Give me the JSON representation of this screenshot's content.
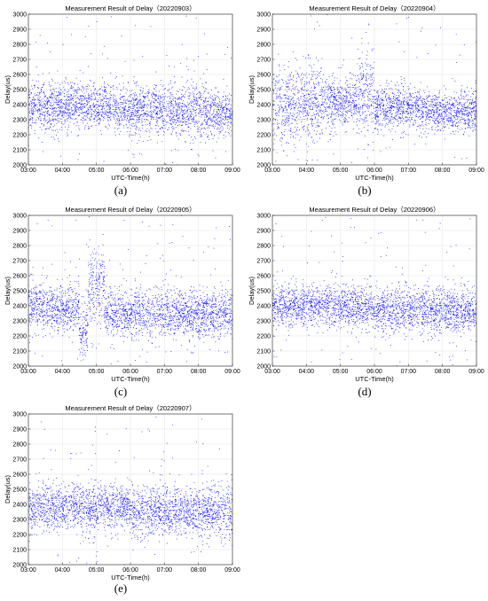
{
  "chart_data": [
    {
      "type": "scatter",
      "panel": "a",
      "caption": "(a)",
      "title": "Measurement Result of Delay（20220903）",
      "xlabel": "UTC-Time(h)",
      "ylabel": "Delay(us)",
      "xlim": [
        "03:00",
        "09:00"
      ],
      "ylim": [
        2000,
        3000
      ],
      "xticks": [
        "03:00",
        "04:00",
        "05:00",
        "06:00",
        "07:00",
        "08:00",
        "09:00"
      ],
      "yticks": [
        2000,
        2100,
        2200,
        2300,
        2400,
        2500,
        2600,
        2700,
        2800,
        2900,
        3000
      ],
      "grid": true,
      "series": [
        {
          "color": "#0000ff",
          "segments": [
            {
              "from": "03:00",
              "to": "05:30",
              "mean": 2390,
              "spread": 150
            },
            {
              "from": "05:30",
              "to": "07:00",
              "mean": 2370,
              "spread": 160
            },
            {
              "from": "07:00",
              "to": "08:30",
              "mean": 2360,
              "spread": 170
            },
            {
              "from": "08:30",
              "to": "09:00",
              "mean": 2340,
              "spread": 140
            }
          ]
        }
      ]
    },
    {
      "type": "scatter",
      "panel": "b",
      "caption": "(b)",
      "title": "Measurement Result of Delay（20220904）",
      "xlabel": "UTC-Time(h)",
      "ylabel": "Delay(us)",
      "xlim": [
        "03:00",
        "09:00"
      ],
      "ylim": [
        2000,
        3000
      ],
      "xticks": [
        "03:00",
        "04:00",
        "05:00",
        "06:00",
        "07:00",
        "08:00",
        "09:00"
      ],
      "yticks": [
        2000,
        2100,
        2200,
        2300,
        2400,
        2500,
        2600,
        2700,
        2800,
        2900,
        3000
      ],
      "grid": true,
      "series": [
        {
          "color": "#0000ff",
          "segments": [
            {
              "from": "03:00",
              "to": "04:30",
              "mean": 2400,
              "spread": 280
            },
            {
              "from": "04:30",
              "to": "05:30",
              "mean": 2420,
              "spread": 160
            },
            {
              "from": "05:30",
              "to": "06:00",
              "mean": 2480,
              "spread": 300
            },
            {
              "from": "06:00",
              "to": "07:30",
              "mean": 2380,
              "spread": 140
            },
            {
              "from": "07:30",
              "to": "09:00",
              "mean": 2350,
              "spread": 130
            }
          ]
        }
      ]
    },
    {
      "type": "scatter",
      "panel": "c",
      "caption": "(c)",
      "title": "Measurement Result of Delay（20220905）",
      "xlabel": "UTC-Time(h)",
      "ylabel": "Delay(us)",
      "xlim": [
        "03:00",
        "09:00"
      ],
      "ylim": [
        2000,
        3000
      ],
      "xticks": [
        "03:00",
        "04:00",
        "05:00",
        "06:00",
        "07:00",
        "08:00",
        "09:00"
      ],
      "yticks": [
        2000,
        2100,
        2200,
        2300,
        2400,
        2500,
        2600,
        2700,
        2800,
        2900,
        3000
      ],
      "grid": true,
      "series": [
        {
          "color": "#0000ff",
          "segments": [
            {
              "from": "03:00",
              "to": "04:30",
              "mean": 2390,
              "spread": 160
            },
            {
              "from": "04:30",
              "to": "04:45",
              "mean": 2220,
              "spread": 200
            },
            {
              "from": "04:45",
              "to": "05:15",
              "mean": 2520,
              "spread": 250
            },
            {
              "from": "05:15",
              "to": "09:00",
              "mean": 2350,
              "spread": 160
            }
          ]
        }
      ]
    },
    {
      "type": "scatter",
      "panel": "d",
      "caption": "(d)",
      "title": "Measurement Result of Delay（20220906）",
      "xlabel": "UTC-Time(h)",
      "ylabel": "Delay(us)",
      "xlim": [
        "03:00",
        "09:00"
      ],
      "ylim": [
        2000,
        3000
      ],
      "xticks": [
        "03:00",
        "04:00",
        "05:00",
        "06:00",
        "07:00",
        "08:00",
        "09:00"
      ],
      "yticks": [
        2000,
        2100,
        2200,
        2300,
        2400,
        2500,
        2600,
        2700,
        2800,
        2900,
        3000
      ],
      "grid": true,
      "series": [
        {
          "color": "#0000ff",
          "segments": [
            {
              "from": "03:00",
              "to": "06:00",
              "mean": 2400,
              "spread": 140
            },
            {
              "from": "06:00",
              "to": "09:00",
              "mean": 2370,
              "spread": 150
            }
          ]
        }
      ]
    },
    {
      "type": "scatter",
      "panel": "e",
      "caption": "(e)",
      "title": "Measurement Result of Delay（20220907）",
      "xlabel": "UTC-Time(h)",
      "ylabel": "Delay(us)",
      "xlim": [
        "03:00",
        "09:00"
      ],
      "ylim": [
        2000,
        3000
      ],
      "xticks": [
        "03:00",
        "04:00",
        "05:00",
        "06:00",
        "07:00",
        "08:00",
        "09:00"
      ],
      "yticks": [
        2000,
        2100,
        2200,
        2300,
        2400,
        2500,
        2600,
        2700,
        2800,
        2900,
        3000
      ],
      "grid": true,
      "series": [
        {
          "color": "#0000ff",
          "segments": [
            {
              "from": "03:00",
              "to": "06:00",
              "mean": 2380,
              "spread": 150
            },
            {
              "from": "06:00",
              "to": "09:00",
              "mean": 2350,
              "spread": 170
            }
          ]
        }
      ]
    }
  ]
}
